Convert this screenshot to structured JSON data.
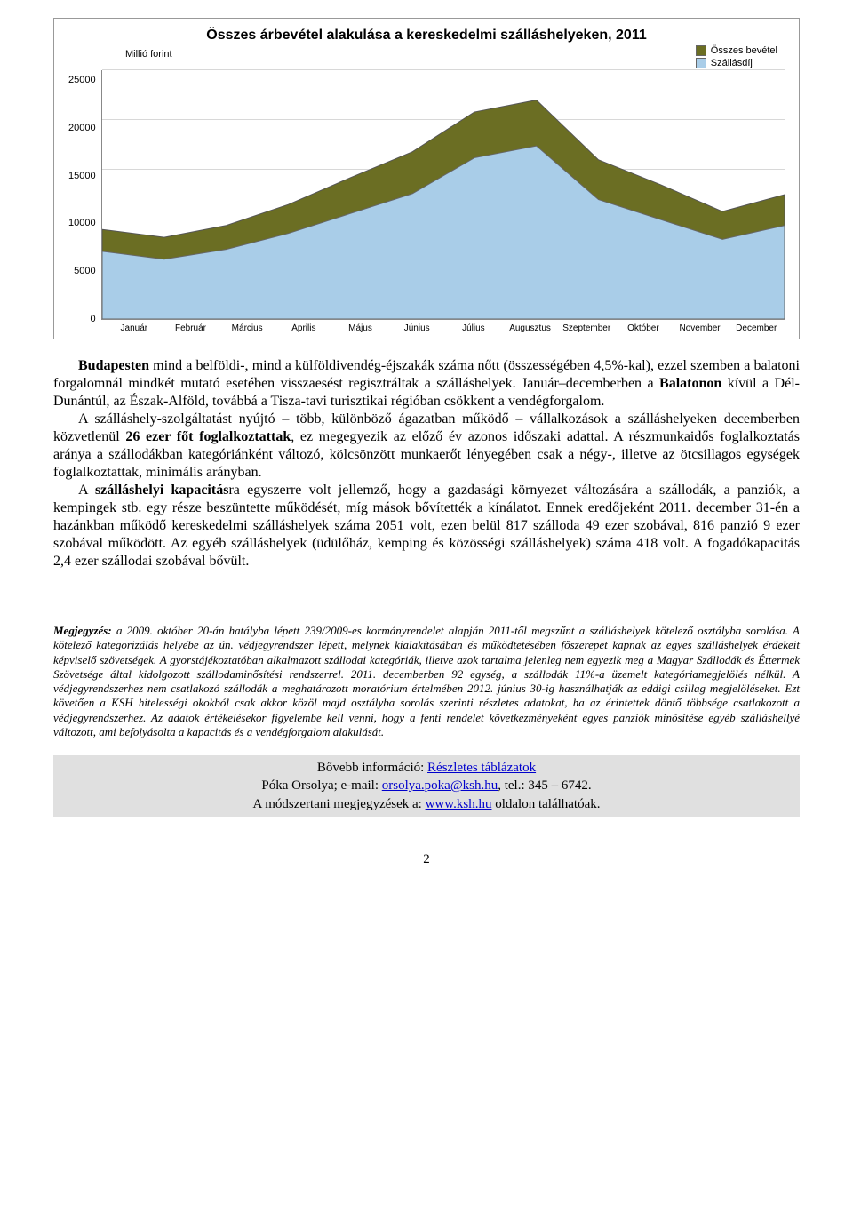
{
  "chart": {
    "type": "area",
    "title": "Összes árbevétel alakulása a kereskedelmi szálláshelyeken, 2011",
    "y_label": "Millió forint",
    "legend": [
      {
        "label": "Összes bevétel",
        "color": "#6b6e23"
      },
      {
        "label": "Szállásdíj",
        "color": "#a9cde8"
      }
    ],
    "months": [
      "Január",
      "Február",
      "Március",
      "Április",
      "Május",
      "Június",
      "Július",
      "Augusztus",
      "Szeptember",
      "Október",
      "November",
      "December"
    ],
    "ylim": [
      0,
      25000
    ],
    "ytick_step": 5000,
    "yticks": [
      "25000",
      "20000",
      "15000",
      "10000",
      "5000",
      "0"
    ],
    "series_total": [
      9000,
      8200,
      9400,
      11500,
      14200,
      16800,
      20800,
      22000,
      16000,
      13500,
      10800,
      12500
    ],
    "series_szallasdij": [
      6800,
      6000,
      7000,
      8600,
      10600,
      12600,
      16200,
      17400,
      12000,
      10000,
      8000,
      9400
    ],
    "background_color": "#ffffff",
    "grid_color": "#d8d8d8",
    "axis_color": "#888888",
    "tick_fontsize": 11,
    "title_fontsize": 16,
    "title_fontweight": "bold",
    "font_family": "Arial"
  },
  "body": {
    "p1a": "Budapesten",
    "p1b": " mind a belföldi-, mind a külföldivendég-éjszakák száma nőtt (összességében 4,5%-kal), ezzel szemben a balatoni forgalomnál mindkét mutató esetében visszaesést regisztráltak a szálláshelyek. Január–decemberben a ",
    "p1c": "Balatonon",
    "p1d": " kívül a Dél-Dunántúl, az Észak-Alföld, továbbá a Tisza-tavi turisztikai régióban csökkent a vendégforgalom.",
    "p2a": "A szálláshely-szolgáltatást nyújtó – több, különböző ágazatban működő – vállalkozások a szálláshelyeken decemberben közvetlenül ",
    "p2b": "26 ezer főt foglalkoztattak",
    "p2c": ", ez megegyezik az előző év azonos időszaki adattal. A részmunkaidős foglalkoztatás aránya a szállodákban kategóriánként változó, kölcsönzött munkaerőt lényegében csak a négy-, illetve az ötcsillagos egységek foglalkoztattak, minimális arányban.",
    "p3a": "A ",
    "p3b": "szálláshelyi kapacitás",
    "p3c": "ra egyszerre volt jellemző, hogy a gazdasági környezet változására a szállodák, a panziók, a kempingek stb. egy része beszüntette működését, míg mások bővítették a kínálatot. Ennek eredőjeként 2011. december 31-én a hazánkban működő kereskedelmi szálláshelyek száma 2051 volt, ezen belül 817 szálloda 49 ezer szobával, 816 panzió 9 ezer szobával működött. Az egyéb szálláshelyek (üdülőház, kemping és közösségi szálláshelyek) száma 418 volt. A fogadókapacitás 2,4 ezer szállodai szobával bővült."
  },
  "note": {
    "heading": "Megjegyzés:",
    "text": " a 2009. október 20-án hatályba lépett 239/2009-es kormányrendelet alapján 2011-től megszűnt a szálláshelyek kötelező osztályba sorolása. A kötelező kategorizálás helyébe az ún. védjegyrendszer lépett, melynek kialakításában és működtetésében főszerepet kapnak az egyes szálláshelyek érdekeit képviselő szövetségek. A gyorstájékoztatóban alkalmazott szállodai kategóriák, illetve azok tartalma jelenleg nem egyezik meg a Magyar Szállodák és Éttermek Szövetsége által kidolgozott szállodaminősítési rendszerrel. 2011. decemberben 92 egység, a szállodák 11%-a üzemelt kategóriamegjelölés nélkül. A védjegyrendszerhez nem csatlakozó szállodák a meghatározott moratórium értelmében 2012. június 30-ig használhatják az eddigi csillag megjelöléseket. Ezt követően a KSH hitelességi okokból csak akkor közöl majd osztályba sorolás szerinti részletes adatokat, ha az érintettek döntő többsége csatlakozott a védjegyrendszerhez. Az adatok értékelésekor figyelembe kell venni, hogy a fenti rendelet következményeként egyes panziók minősítése egyéb szálláshellyé változott, ami befolyásolta a kapacitás és a vendégforgalom alakulását."
  },
  "info": {
    "line1_a": "Bővebb információ: ",
    "line1_link": "Részletes táblázatok",
    "line2_a": "Póka Orsolya; e-mail: ",
    "line2_link": "orsolya.poka@ksh.hu",
    "line2_b": ", tel.: 345 – 6742.",
    "line3_a": "A módszertani megjegyzések a: ",
    "line3_link": "www.ksh.hu",
    "line3_b": " oldalon találhatóak."
  },
  "page_number": "2"
}
